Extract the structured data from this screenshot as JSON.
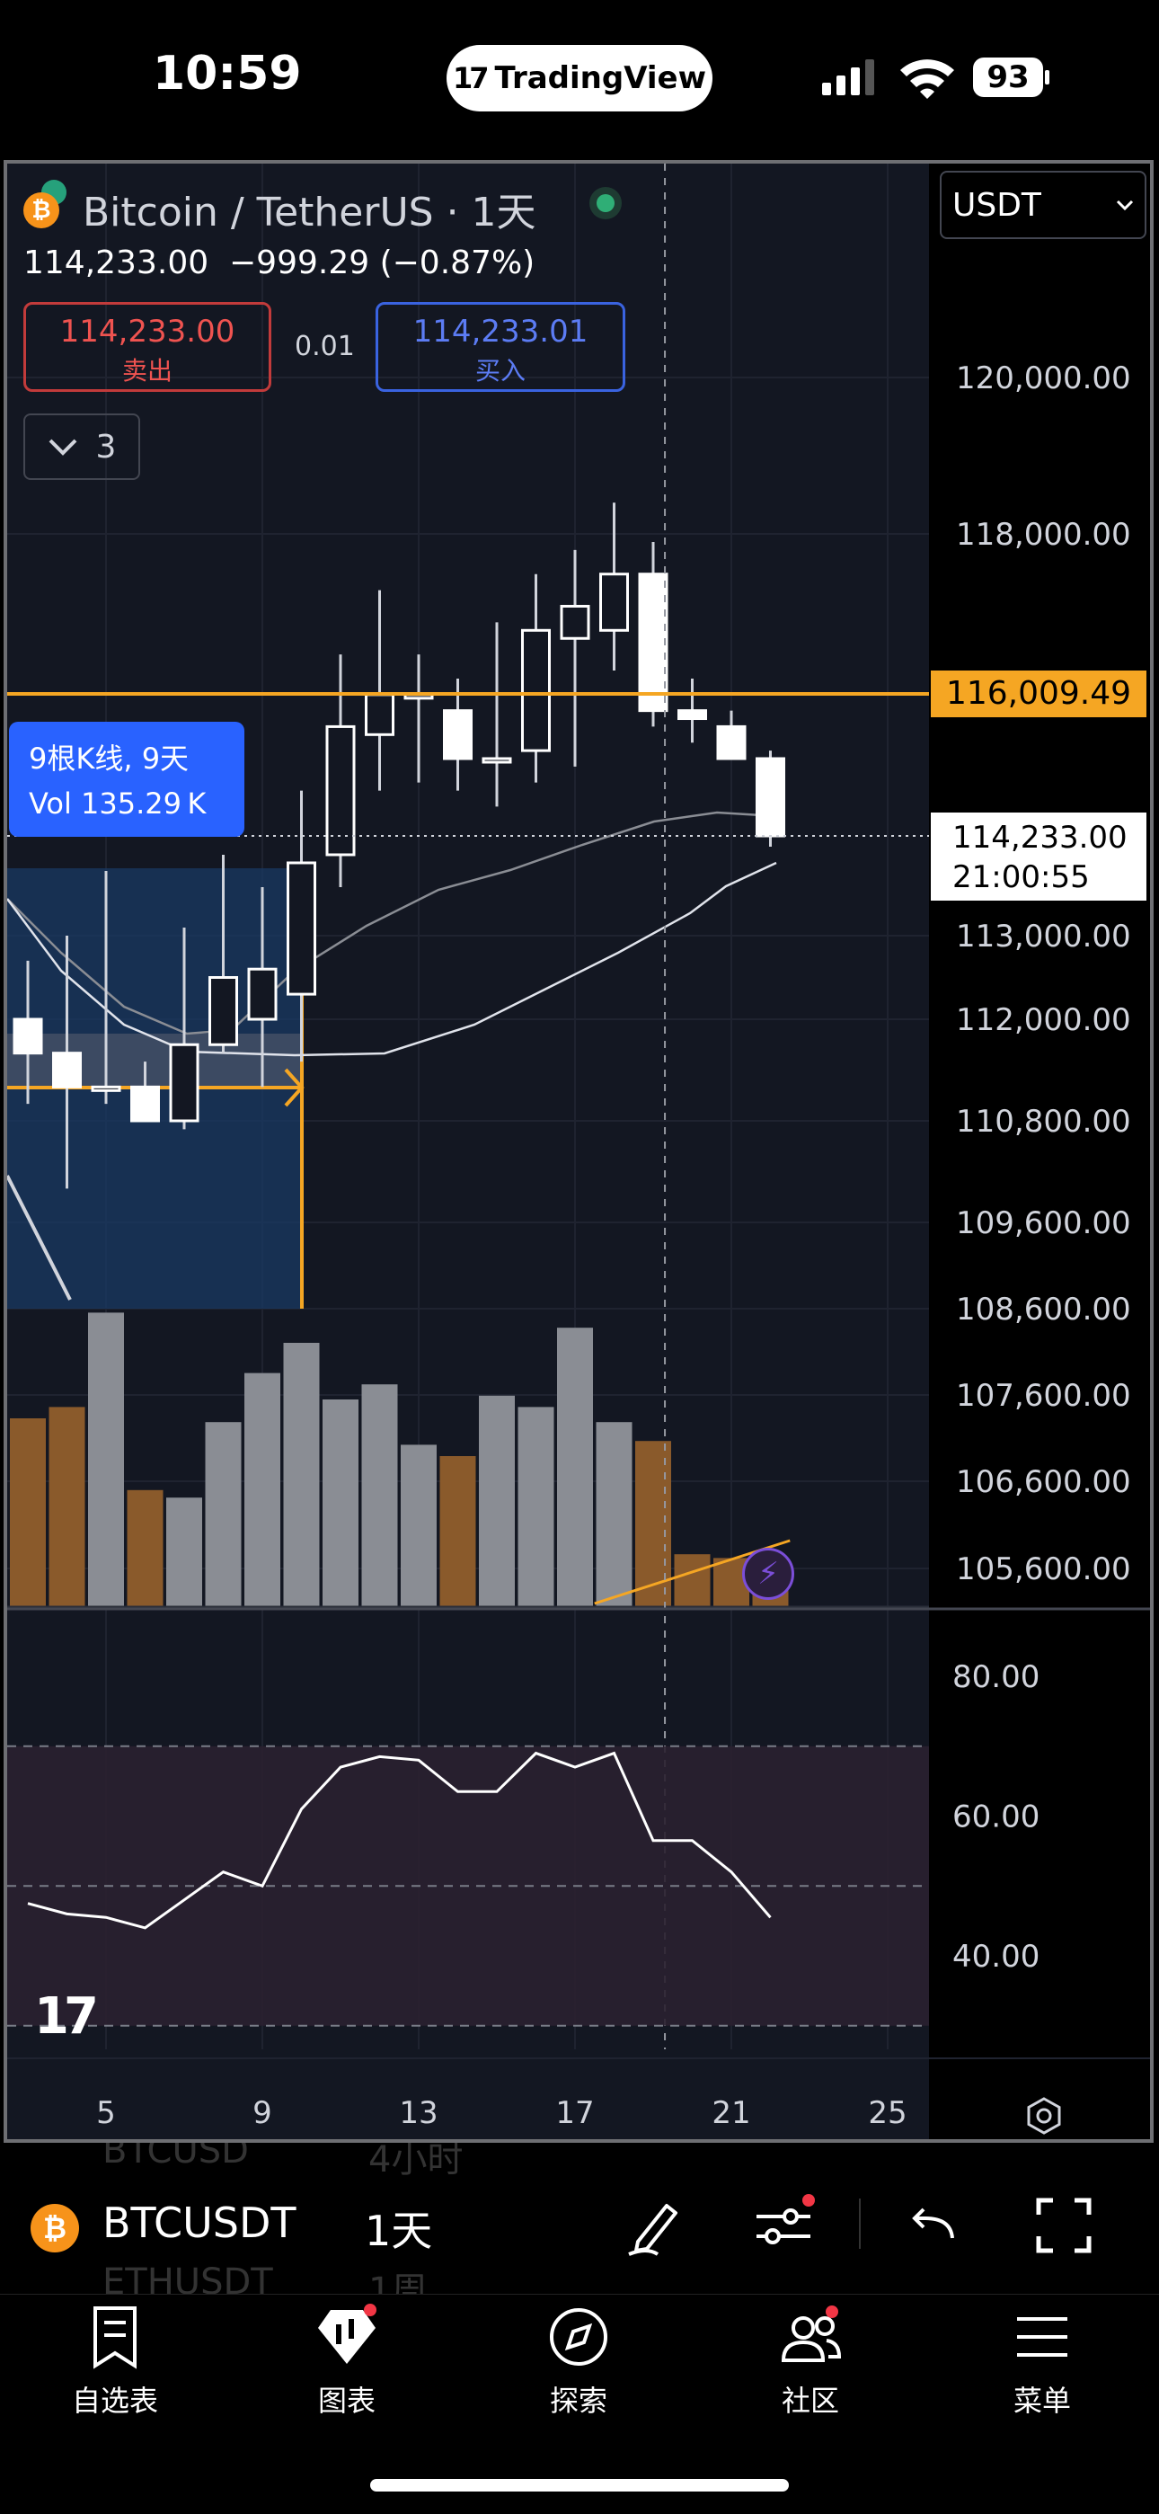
{
  "status_bar": {
    "time": "10:59",
    "app_pill": "TradingView",
    "battery": "93"
  },
  "header": {
    "symbol_title": "Bitcoin / TetherUS · 1天",
    "last_price": "114,233.00",
    "change": "−999.29 (−0.87%)",
    "sell": {
      "price": "114,233.00",
      "label": "卖出"
    },
    "buy": {
      "price": "114,233.01",
      "label": "买入"
    },
    "spread": "0.01",
    "indicators_count": "3",
    "currency": "USDT"
  },
  "range_info": {
    "line1": "9根K线, 9天",
    "line2": "Vol 135.29 K"
  },
  "price_tags": {
    "horizontal_line": "116,009.49",
    "current_price": "114,233.00",
    "countdown": "21:00:55"
  },
  "colors": {
    "chart_bg": "#131722",
    "up": "#ffffff",
    "down": "#ffffff",
    "volume_up": "#8a8d94",
    "volume_down": "#8a5a2b",
    "accent_orange": "#f5a623",
    "selection_blue": "#2962ff"
  },
  "chart_data": [
    {
      "type": "candlestick",
      "x_ticks": [
        "5",
        "9",
        "13",
        "17",
        "21",
        "25"
      ],
      "y_ticks": [
        "120,000.00",
        "118,000.00",
        "113,000.00",
        "112,000.00",
        "110,800.00",
        "109,600.00",
        "108,600.00",
        "107,600.00",
        "106,600.00",
        "105,600.00"
      ],
      "candles": [
        {
          "day": 3,
          "open": 112000,
          "high": 112700,
          "low": 111000,
          "close": 111600
        },
        {
          "day": 4,
          "open": 111600,
          "high": 113000,
          "low": 110000,
          "close": 111200
        },
        {
          "day": 5,
          "open": 111200,
          "high": 113800,
          "low": 111000,
          "close": 111200
        },
        {
          "day": 6,
          "open": 111200,
          "high": 111500,
          "low": 110800,
          "close": 110800
        },
        {
          "day": 7,
          "open": 110800,
          "high": 113100,
          "low": 110700,
          "close": 111700
        },
        {
          "day": 8,
          "open": 111700,
          "high": 114000,
          "low": 111600,
          "close": 112500
        },
        {
          "day": 9,
          "open": 112000,
          "high": 113600,
          "low": 111200,
          "close": 112600
        },
        {
          "day": 10,
          "open": 112300,
          "high": 114800,
          "low": 111500,
          "close": 113900
        },
        {
          "day": 11,
          "open": 114000,
          "high": 116500,
          "low": 113600,
          "close": 115600
        },
        {
          "day": 12,
          "open": 115500,
          "high": 117300,
          "low": 114800,
          "close": 116000
        },
        {
          "day": 13,
          "open": 116000,
          "high": 116500,
          "low": 114900,
          "close": 116000
        },
        {
          "day": 14,
          "open": 115800,
          "high": 116200,
          "low": 114800,
          "close": 115200
        },
        {
          "day": 15,
          "open": 115200,
          "high": 116900,
          "low": 114600,
          "close": 115200
        },
        {
          "day": 16,
          "open": 115300,
          "high": 117500,
          "low": 114900,
          "close": 116800
        },
        {
          "day": 17,
          "open": 116700,
          "high": 117800,
          "low": 115100,
          "close": 117100
        },
        {
          "day": 18,
          "open": 116800,
          "high": 118400,
          "low": 116300,
          "close": 117500
        },
        {
          "day": 19,
          "open": 117500,
          "high": 117900,
          "low": 115600,
          "close": 115800
        },
        {
          "day": 20,
          "open": 115800,
          "high": 116200,
          "low": 115400,
          "close": 115700
        },
        {
          "day": 21,
          "open": 115600,
          "high": 115800,
          "low": 115200,
          "close": 115200
        },
        {
          "day": 22,
          "open": 115200,
          "high": 115300,
          "low": 114100,
          "close": 114233
        }
      ],
      "volume": [
        {
          "day": 3,
          "value": 0.5
        },
        {
          "day": 4,
          "value": 0.53
        },
        {
          "day": 5,
          "value": 0.78
        },
        {
          "day": 6,
          "value": 0.31
        },
        {
          "day": 7,
          "value": 0.29
        },
        {
          "day": 8,
          "value": 0.49
        },
        {
          "day": 9,
          "value": 0.62
        },
        {
          "day": 10,
          "value": 0.7
        },
        {
          "day": 11,
          "value": 0.55
        },
        {
          "day": 12,
          "value": 0.59
        },
        {
          "day": 13,
          "value": 0.43
        },
        {
          "day": 14,
          "value": 0.4
        },
        {
          "day": 15,
          "value": 0.56
        },
        {
          "day": 16,
          "value": 0.53
        },
        {
          "day": 17,
          "value": 0.74
        },
        {
          "day": 18,
          "value": 0.49
        },
        {
          "day": 19,
          "value": 0.44
        },
        {
          "day": 20,
          "value": 0.14
        },
        {
          "day": 21,
          "value": 0.13
        },
        {
          "day": 22,
          "value": 0.05
        }
      ],
      "horizontal_line": 116009.49,
      "current_price": 114233.0
    },
    {
      "type": "line",
      "name": "RSI",
      "y_ticks": [
        "80.00",
        "60.00",
        "40.00"
      ],
      "band": [
        30,
        70
      ],
      "x": [
        3,
        4,
        5,
        6,
        7,
        8,
        9,
        10,
        11,
        12,
        13,
        14,
        15,
        16,
        17,
        18,
        19,
        20,
        21,
        22
      ],
      "values": [
        47.5,
        46,
        45.5,
        44,
        48,
        52,
        50,
        61,
        67,
        68.5,
        68,
        63.5,
        63.5,
        69,
        67,
        69,
        56.5,
        56.5,
        52,
        45.5
      ]
    }
  ],
  "toolbar": {
    "symbol": "BTCUSDT",
    "interval": "1天",
    "ghost_row1": [
      "BTCUSD",
      "4小时"
    ],
    "ghost_row2": [
      "ETHUSDT",
      "1周"
    ]
  },
  "bottom_nav": [
    {
      "label": "自选表",
      "icon": "watchlist-icon"
    },
    {
      "label": "图表",
      "icon": "chart-icon"
    },
    {
      "label": "探索",
      "icon": "compass-icon"
    },
    {
      "label": "社区",
      "icon": "community-icon"
    },
    {
      "label": "菜单",
      "icon": "menu-icon"
    }
  ]
}
